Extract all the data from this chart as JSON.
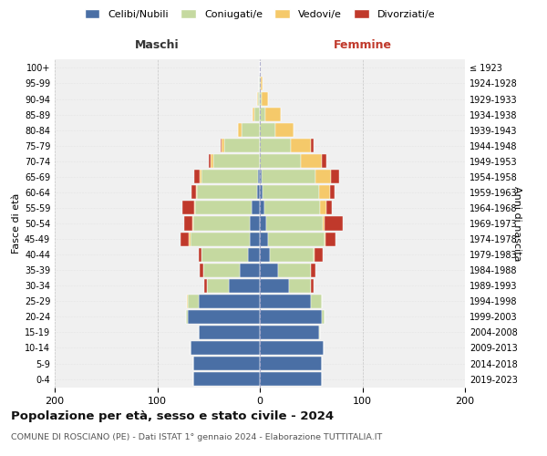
{
  "age_groups": [
    "0-4",
    "5-9",
    "10-14",
    "15-19",
    "20-24",
    "25-29",
    "30-34",
    "35-39",
    "40-44",
    "45-49",
    "50-54",
    "55-59",
    "60-64",
    "65-69",
    "70-74",
    "75-79",
    "80-84",
    "85-89",
    "90-94",
    "95-99",
    "100+"
  ],
  "birth_years": [
    "2019-2023",
    "2014-2018",
    "2009-2013",
    "2004-2008",
    "1999-2003",
    "1994-1998",
    "1989-1993",
    "1984-1988",
    "1979-1983",
    "1974-1978",
    "1969-1973",
    "1964-1968",
    "1959-1963",
    "1954-1958",
    "1949-1953",
    "1944-1948",
    "1939-1943",
    "1934-1938",
    "1929-1933",
    "1924-1928",
    "≤ 1923"
  ],
  "males": {
    "celibi": [
      65,
      65,
      68,
      60,
      70,
      60,
      30,
      20,
      12,
      10,
      10,
      8,
      3,
      2,
      0,
      0,
      0,
      0,
      0,
      0,
      0
    ],
    "coniugati": [
      0,
      0,
      0,
      0,
      2,
      10,
      22,
      35,
      45,
      58,
      55,
      55,
      58,
      55,
      45,
      35,
      18,
      5,
      2,
      1,
      0
    ],
    "vedovi": [
      0,
      0,
      0,
      0,
      0,
      1,
      0,
      0,
      0,
      1,
      1,
      1,
      1,
      2,
      3,
      2,
      3,
      2,
      1,
      0,
      0
    ],
    "divorziati": [
      0,
      0,
      0,
      0,
      0,
      0,
      2,
      4,
      3,
      8,
      8,
      12,
      5,
      5,
      2,
      1,
      0,
      0,
      0,
      0,
      0
    ]
  },
  "females": {
    "nubili": [
      60,
      60,
      62,
      58,
      60,
      50,
      28,
      18,
      10,
      8,
      6,
      4,
      3,
      2,
      0,
      0,
      0,
      0,
      0,
      0,
      0
    ],
    "coniugate": [
      0,
      0,
      0,
      1,
      3,
      10,
      22,
      32,
      42,
      55,
      55,
      55,
      55,
      52,
      40,
      30,
      15,
      5,
      2,
      1,
      0
    ],
    "vedove": [
      0,
      0,
      0,
      0,
      0,
      0,
      0,
      0,
      1,
      1,
      2,
      6,
      10,
      15,
      20,
      20,
      18,
      15,
      6,
      2,
      0
    ],
    "divorziate": [
      0,
      0,
      0,
      0,
      0,
      0,
      2,
      4,
      8,
      10,
      18,
      5,
      5,
      8,
      5,
      2,
      0,
      0,
      0,
      0,
      0
    ]
  },
  "colors": {
    "celibi_nubili": "#4a6fa5",
    "coniugati": "#c5d9a0",
    "vedovi": "#f5c96a",
    "divorziati": "#c0392b"
  },
  "title": "Popolazione per età, sesso e stato civile - 2024",
  "subtitle": "COMUNE DI ROSCIANO (PE) - Dati ISTAT 1° gennaio 2024 - Elaborazione TUTTITALIA.IT",
  "xlabel_left": "Maschi",
  "xlabel_right": "Femmine",
  "ylabel_left": "Fasce di età",
  "ylabel_right": "Anni di nascita",
  "xlim": 200,
  "legend_labels": [
    "Celibi/Nubili",
    "Coniugati/e",
    "Vedovi/e",
    "Divorziati/e"
  ],
  "bg_color": "#ffffff",
  "plot_bg_color": "#f0f0f0",
  "grid_color": "#cccccc"
}
